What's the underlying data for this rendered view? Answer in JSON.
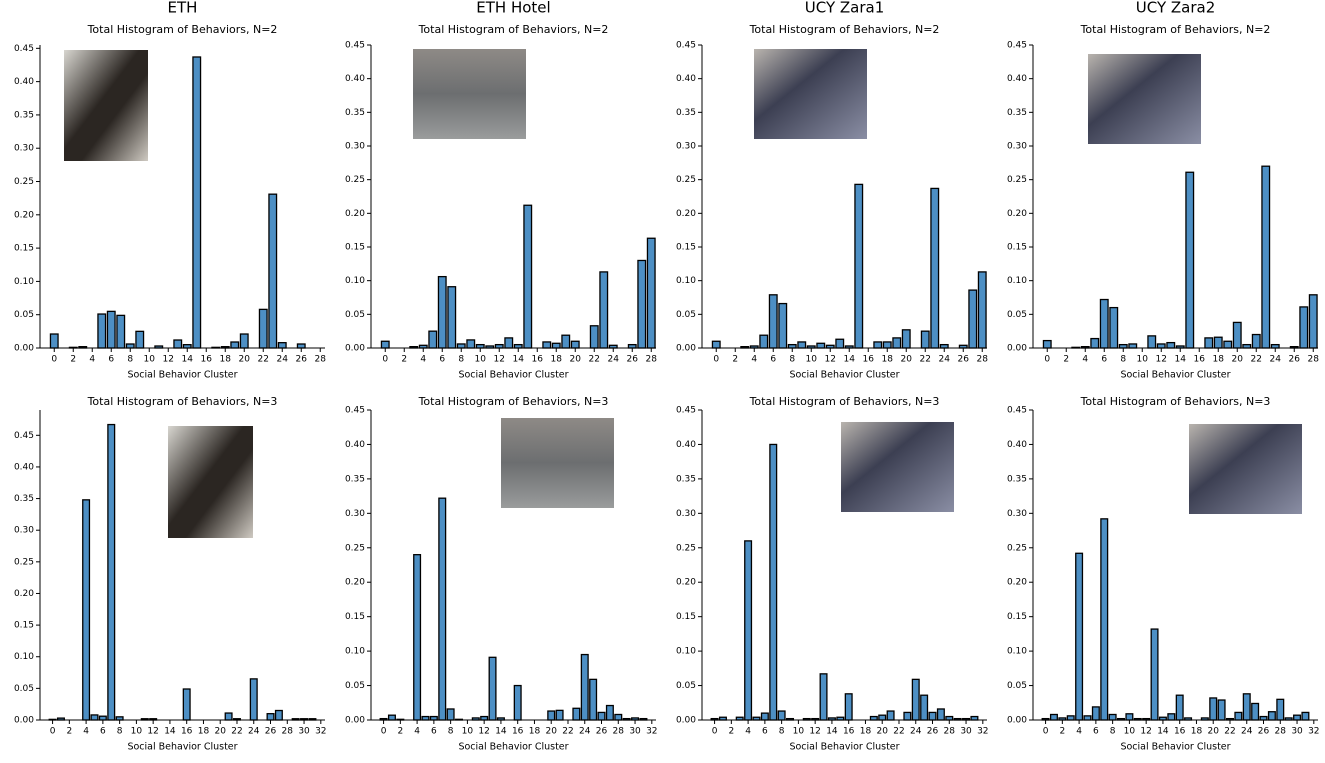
{
  "chart_data": [
    {
      "type": "bar",
      "title": "ETH",
      "subtitle": "Total Histogram of Behaviors, N=2",
      "xlabel": "Social Behavior Cluster",
      "color": "#4d8fc4",
      "x": [
        0,
        2,
        3,
        5,
        6,
        7,
        8,
        9,
        11,
        13,
        14,
        15,
        17,
        18,
        19,
        20,
        22,
        23,
        24,
        26
      ],
      "values": [
        0.021,
        0.001,
        0.002,
        0.051,
        0.055,
        0.049,
        0.006,
        0.025,
        0.003,
        0.012,
        0.005,
        0.437,
        0.001,
        0.002,
        0.009,
        0.021,
        0.058,
        0.231,
        0.008,
        0.006
      ],
      "xlim": [
        -1.5,
        28.5
      ],
      "xticks": [
        0,
        2,
        4,
        6,
        8,
        10,
        12,
        14,
        16,
        18,
        20,
        22,
        24,
        26,
        28
      ],
      "ylim": [
        0,
        0.455
      ],
      "yticks": [
        {
          "value": 0,
          "label": "0.00"
        },
        0.05,
        {
          "value": 0.1,
          "label": "0.10"
        },
        0.15,
        {
          "value": 0.2,
          "label": "0.20"
        },
        0.25,
        {
          "value": 0.3,
          "label": "0.30"
        },
        0.35,
        {
          "value": 0.4,
          "label": "0.40"
        },
        0.45
      ]
    },
    {
      "type": "bar",
      "title": "ETH Hotel",
      "subtitle": "Total Histogram of Behaviors, N=2",
      "xlabel": "Social Behavior Cluster",
      "color": "#4d8fc4",
      "x": [
        0,
        3,
        4,
        5,
        6,
        7,
        8,
        9,
        10,
        11,
        12,
        13,
        14,
        15,
        17,
        18,
        19,
        20,
        22,
        23,
        24,
        26,
        27,
        28
      ],
      "values": [
        0.01,
        0.002,
        0.004,
        0.025,
        0.106,
        0.091,
        0.006,
        0.012,
        0.005,
        0.003,
        0.005,
        0.015,
        0.005,
        0.212,
        0.009,
        0.007,
        0.019,
        0.01,
        0.033,
        0.113,
        0.004,
        0.005,
        0.13,
        0.163
      ],
      "xlim": [
        -1.5,
        28.5
      ],
      "xticks": [
        0,
        2,
        4,
        6,
        8,
        10,
        12,
        14,
        16,
        18,
        20,
        22,
        24,
        26,
        28
      ],
      "ylim": [
        0,
        0.45
      ],
      "yticks": [
        {
          "value": 0,
          "label": "0.00"
        },
        0.05,
        {
          "value": 0.1,
          "label": "0.10"
        },
        0.15,
        {
          "value": 0.2,
          "label": "0.20"
        },
        0.25,
        {
          "value": 0.3,
          "label": "0.30"
        },
        0.35,
        {
          "value": 0.4,
          "label": "0.40"
        },
        0.45
      ]
    },
    {
      "type": "bar",
      "title": "UCY Zara1",
      "subtitle": "Total Histogram of Behaviors, N=2",
      "xlabel": "Social Behavior Cluster",
      "color": "#4d8fc4",
      "x": [
        0,
        3,
        4,
        5,
        6,
        7,
        8,
        9,
        10,
        11,
        12,
        13,
        14,
        15,
        17,
        18,
        19,
        20,
        22,
        23,
        24,
        26,
        27,
        28
      ],
      "values": [
        0.01,
        0.002,
        0.003,
        0.019,
        0.079,
        0.066,
        0.005,
        0.009,
        0.003,
        0.007,
        0.004,
        0.013,
        0.003,
        0.243,
        0.009,
        0.009,
        0.015,
        0.027,
        0.025,
        0.237,
        0.005,
        0.004,
        0.086,
        0.113
      ],
      "xlim": [
        -1.5,
        28.5
      ],
      "xticks": [
        0,
        2,
        4,
        6,
        8,
        10,
        12,
        14,
        16,
        18,
        20,
        22,
        24,
        26,
        28
      ],
      "ylim": [
        0,
        0.45
      ],
      "yticks": [
        {
          "value": 0,
          "label": "0.00"
        },
        0.05,
        {
          "value": 0.1,
          "label": "0.10"
        },
        0.15,
        {
          "value": 0.2,
          "label": "0.20"
        },
        0.25,
        {
          "value": 0.3,
          "label": "0.30"
        },
        0.35,
        {
          "value": 0.4,
          "label": "0.40"
        },
        0.45
      ]
    },
    {
      "type": "bar",
      "title": "UCY Zara2",
      "subtitle": "Total Histogram of Behaviors, N=2",
      "xlabel": "Social Behavior Cluster",
      "color": "#4d8fc4",
      "x": [
        0,
        3,
        4,
        5,
        6,
        7,
        8,
        9,
        11,
        12,
        13,
        14,
        15,
        17,
        18,
        19,
        20,
        21,
        22,
        23,
        24,
        26,
        27,
        28
      ],
      "values": [
        0.011,
        0.001,
        0.002,
        0.014,
        0.072,
        0.06,
        0.005,
        0.006,
        0.018,
        0.006,
        0.008,
        0.003,
        0.261,
        0.015,
        0.016,
        0.01,
        0.038,
        0.005,
        0.02,
        0.27,
        0.005,
        0.002,
        0.061,
        0.079
      ],
      "xlim": [
        -1.5,
        28.5
      ],
      "xticks": [
        0,
        2,
        4,
        6,
        8,
        10,
        12,
        14,
        16,
        18,
        20,
        22,
        24,
        26,
        28
      ],
      "ylim": [
        0,
        0.45
      ],
      "yticks": [
        {
          "value": 0,
          "label": "0.00"
        },
        0.05,
        {
          "value": 0.1,
          "label": "0.10"
        },
        0.15,
        {
          "value": 0.2,
          "label": "0.20"
        },
        0.25,
        {
          "value": 0.3,
          "label": "0.30"
        },
        0.35,
        {
          "value": 0.4,
          "label": "0.40"
        },
        0.45
      ]
    },
    {
      "type": "bar",
      "title": "Total Histogram of Behaviors, N=3",
      "xlabel": "Social Behavior Cluster",
      "color": "#4d8fc4",
      "x": [
        0,
        1,
        4,
        5,
        6,
        7,
        8,
        11,
        12,
        16,
        21,
        22,
        24,
        26,
        27,
        29,
        30,
        31
      ],
      "values": [
        0.001,
        0.003,
        0.348,
        0.008,
        0.006,
        0.467,
        0.005,
        0.002,
        0.002,
        0.049,
        0.011,
        0.002,
        0.065,
        0.01,
        0.015,
        0.002,
        0.002,
        0.002
      ],
      "xlim": [
        -1.5,
        32.5
      ],
      "xticks": [
        0,
        2,
        4,
        6,
        8,
        10,
        12,
        14,
        16,
        18,
        20,
        22,
        24,
        26,
        28,
        30,
        32
      ],
      "ylim": [
        0,
        0.49
      ],
      "yticks": [
        {
          "value": 0,
          "label": "0.00"
        },
        0.05,
        {
          "value": 0.1,
          "label": "0.10"
        },
        0.15,
        {
          "value": 0.2,
          "label": "0.20"
        },
        0.25,
        {
          "value": 0.3,
          "label": "0.30"
        },
        0.35,
        {
          "value": 0.4,
          "label": "0.40"
        },
        0.45
      ]
    },
    {
      "type": "bar",
      "title": "Total Histogram of Behaviors, N=3",
      "xlabel": "Social Behavior Cluster",
      "color": "#4d8fc4",
      "x": [
        0,
        1,
        2,
        4,
        5,
        6,
        7,
        8,
        9,
        11,
        12,
        13,
        14,
        16,
        20,
        21,
        23,
        24,
        25,
        26,
        27,
        28,
        29,
        30,
        31
      ],
      "values": [
        0.002,
        0.007,
        0.001,
        0.24,
        0.005,
        0.005,
        0.322,
        0.016,
        0.001,
        0.003,
        0.005,
        0.091,
        0.003,
        0.05,
        0.013,
        0.014,
        0.017,
        0.095,
        0.059,
        0.011,
        0.021,
        0.008,
        0.002,
        0.003,
        0.002
      ],
      "xlim": [
        -1.5,
        32.5
      ],
      "xticks": [
        0,
        2,
        4,
        6,
        8,
        10,
        12,
        14,
        16,
        18,
        20,
        22,
        24,
        26,
        28,
        30,
        32
      ],
      "ylim": [
        0,
        0.45
      ],
      "yticks": [
        {
          "value": 0,
          "label": "0.00"
        },
        0.05,
        {
          "value": 0.1,
          "label": "0.10"
        },
        0.15,
        {
          "value": 0.2,
          "label": "0.20"
        },
        0.25,
        {
          "value": 0.3,
          "label": "0.30"
        },
        0.35,
        {
          "value": 0.4,
          "label": "0.40"
        },
        0.45
      ]
    },
    {
      "type": "bar",
      "title": "Total Histogram of Behaviors, N=3",
      "xlabel": "Social Behavior Cluster",
      "color": "#4d8fc4",
      "x": [
        0,
        1,
        3,
        4,
        5,
        6,
        7,
        8,
        9,
        11,
        12,
        13,
        14,
        15,
        16,
        19,
        20,
        21,
        23,
        24,
        25,
        26,
        27,
        28,
        29,
        30,
        31
      ],
      "values": [
        0.002,
        0.004,
        0.004,
        0.26,
        0.004,
        0.01,
        0.4,
        0.013,
        0.002,
        0.002,
        0.002,
        0.067,
        0.003,
        0.004,
        0.038,
        0.005,
        0.007,
        0.013,
        0.011,
        0.059,
        0.036,
        0.011,
        0.016,
        0.005,
        0.002,
        0.002,
        0.005
      ],
      "xlim": [
        -1.5,
        32.5
      ],
      "xticks": [
        0,
        2,
        4,
        6,
        8,
        10,
        12,
        14,
        16,
        18,
        20,
        22,
        24,
        26,
        28,
        30,
        32
      ],
      "ylim": [
        0,
        0.45
      ],
      "yticks": [
        {
          "value": 0,
          "label": "0.00"
        },
        0.05,
        {
          "value": 0.1,
          "label": "0.10"
        },
        0.15,
        {
          "value": 0.2,
          "label": "0.20"
        },
        0.25,
        {
          "value": 0.3,
          "label": "0.30"
        },
        0.35,
        {
          "value": 0.4,
          "label": "0.40"
        },
        0.45
      ]
    },
    {
      "type": "bar",
      "title": "Total Histogram of Behaviors, N=3",
      "xlabel": "Social Behavior Cluster",
      "color": "#4d8fc4",
      "x": [
        0,
        1,
        2,
        3,
        4,
        5,
        6,
        7,
        8,
        9,
        10,
        11,
        12,
        13,
        14,
        15,
        16,
        17,
        19,
        20,
        21,
        22,
        23,
        24,
        25,
        26,
        27,
        28,
        29,
        30,
        31
      ],
      "values": [
        0.002,
        0.008,
        0.003,
        0.006,
        0.242,
        0.006,
        0.019,
        0.292,
        0.008,
        0.002,
        0.009,
        0.002,
        0.002,
        0.132,
        0.004,
        0.009,
        0.036,
        0.003,
        0.003,
        0.032,
        0.029,
        0.002,
        0.011,
        0.038,
        0.024,
        0.005,
        0.012,
        0.03,
        0.003,
        0.007,
        0.011
      ],
      "xlim": [
        -1.5,
        32.5
      ],
      "xticks": [
        0,
        2,
        4,
        6,
        8,
        10,
        12,
        14,
        16,
        18,
        20,
        22,
        24,
        26,
        28,
        30,
        32
      ],
      "ylim": [
        0,
        0.45
      ],
      "yticks": [
        {
          "value": 0,
          "label": "0.00"
        },
        0.05,
        {
          "value": 0.1,
          "label": "0.10"
        },
        0.15,
        {
          "value": 0.2,
          "label": "0.20"
        },
        0.25,
        {
          "value": 0.3,
          "label": "0.30"
        },
        0.35,
        {
          "value": 0.4,
          "label": "0.40"
        },
        0.45
      ]
    }
  ]
}
